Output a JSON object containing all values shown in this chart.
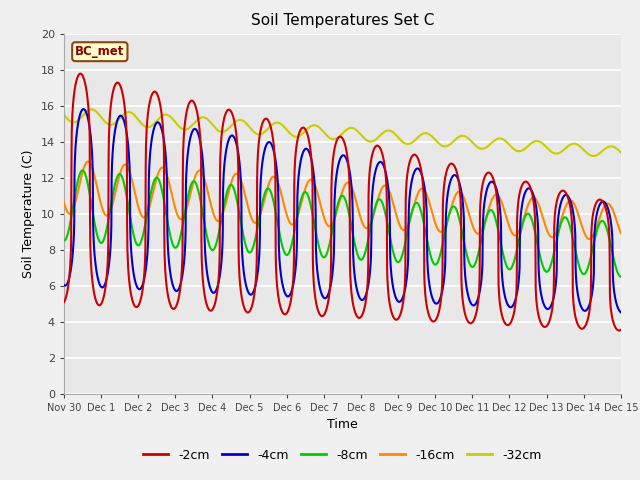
{
  "title": "Soil Temperatures Set C",
  "xlabel": "Time",
  "ylabel": "Soil Temperature (C)",
  "annotation": "BC_met",
  "colors": {
    "-2cm": "#cc0000",
    "-4cm": "#0000cc",
    "-8cm": "#00cc00",
    "-16cm": "#ff8800",
    "-32cm": "#cccc00"
  },
  "legend_labels": [
    "-2cm",
    "-4cm",
    "-8cm",
    "-16cm",
    "-32cm"
  ],
  "yticks": [
    0,
    2,
    4,
    6,
    8,
    10,
    12,
    14,
    16,
    18,
    20
  ],
  "xtick_labels": [
    "Nov 30",
    "Dec 1",
    "Dec 2",
    "Dec 3",
    "Dec 4",
    "Dec 5",
    "Dec 6",
    "Dec 7",
    "Dec 8",
    "Dec 9",
    "Dec 10",
    "Dec 11",
    "Dec 12",
    "Dec 13",
    "Dec 14",
    "Dec 15"
  ],
  "fig_facecolor": "#f0f0f0",
  "ax_facecolor": "#e8e8e8",
  "annotation_facecolor": "#ffffcc",
  "annotation_edgecolor": "#8b4513",
  "annotation_textcolor": "#8b0000"
}
